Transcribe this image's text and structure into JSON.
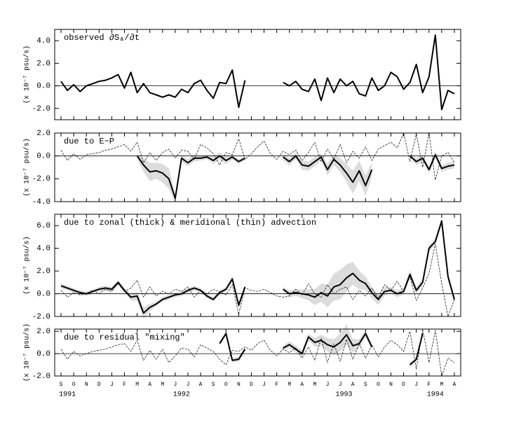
{
  "chart_data": [
    {
      "type": "line",
      "title": "observed ∂Sₐ/∂t",
      "ylabel": "(x 10⁻⁷ psu/s)",
      "zero_line": true,
      "xlim": [
        -0.5,
        31.5
      ],
      "ylim": [
        -3,
        5
      ],
      "yticks": [
        {
          "value": -2,
          "label": "-2.0"
        },
        {
          "value": 0,
          "label": "0.0"
        },
        {
          "value": 2,
          "label": "2.0"
        },
        {
          "value": 4,
          "label": "4.0"
        }
      ],
      "x": [
        0,
        0.5,
        1,
        1.5,
        2,
        2.5,
        3,
        3.5,
        4,
        4.5,
        5,
        5.5,
        6,
        6.5,
        7,
        7.5,
        8,
        8.5,
        9,
        9.5,
        10,
        10.5,
        11,
        11.5,
        12,
        12.5,
        13,
        13.5,
        14,
        14.5,
        15,
        15.5,
        16,
        16.5,
        17,
        17.5,
        18,
        18.5,
        19,
        19.5,
        20,
        20.5,
        21,
        21.5,
        22,
        22.5,
        23,
        23.5,
        24,
        24.5,
        25,
        25.5,
        26,
        26.5,
        27,
        27.5,
        28,
        28.5,
        29,
        29.5,
        30,
        30.5,
        31
      ],
      "series": [
        {
          "color": "#000000",
          "style": "thick",
          "values": [
            0.4,
            -0.4,
            0.1,
            -0.5,
            0.0,
            0.2,
            0.4,
            0.5,
            0.7,
            1.0,
            -0.2,
            1.2,
            -0.6,
            0.2,
            -0.6,
            -0.8,
            -1.0,
            -0.8,
            -1.0,
            -0.3,
            -0.6,
            0.2,
            0.5,
            -0.4,
            -1.1,
            0.3,
            0.2,
            1.4,
            -1.9,
            0.5,
            null,
            null,
            null,
            null,
            null,
            0.3,
            0.0,
            0.4,
            -0.3,
            -0.5,
            0.6,
            -1.3,
            0.7,
            -0.6,
            0.6,
            0.0,
            0.4,
            -0.7,
            -0.9,
            0.7,
            -0.4,
            0.0,
            1.2,
            0.8,
            -0.3,
            0.3,
            1.9,
            -0.6,
            0.8,
            4.5,
            -2.1,
            -0.4,
            -0.7
          ]
        }
      ]
    },
    {
      "type": "line",
      "title": "due to E−P",
      "ylabel": "(x 10⁻⁷ psu/s)",
      "zero_line": true,
      "band_color": "#dcdcdc",
      "xlim": [
        -0.5,
        31.5
      ],
      "ylim": [
        -4,
        2
      ],
      "yticks": [
        {
          "value": -4,
          "label": "-4.0"
        },
        {
          "value": -2,
          "label": "-2.0"
        },
        {
          "value": 0,
          "label": "0.0"
        },
        {
          "value": 2,
          "label": "2.0"
        }
      ],
      "x": [
        0,
        0.5,
        1,
        1.5,
        2,
        2.5,
        3,
        3.5,
        4,
        4.5,
        5,
        5.5,
        6,
        6.5,
        7,
        7.5,
        8,
        8.5,
        9,
        9.5,
        10,
        10.5,
        11,
        11.5,
        12,
        12.5,
        13,
        13.5,
        14,
        14.5,
        15,
        15.5,
        16,
        16.5,
        17,
        17.5,
        18,
        18.5,
        19,
        19.5,
        20,
        20.5,
        21,
        21.5,
        22,
        22.5,
        23,
        23.5,
        24,
        24.5,
        25,
        25.5,
        26,
        26.5,
        27,
        27.5,
        28,
        28.5,
        29,
        29.5,
        30,
        30.5,
        31
      ],
      "series": [
        {
          "color": "#000000",
          "style": "thin",
          "values": [
            0.5,
            -0.4,
            0.2,
            -0.3,
            0.1,
            0.2,
            0.3,
            0.5,
            0.6,
            0.8,
            1.0,
            0.4,
            1.2,
            -0.6,
            0.3,
            -0.4,
            0.3,
            0.6,
            -0.2,
            0.5,
            0.4,
            -0.3,
            1.0,
            0.7,
            0.2,
            -0.8,
            0.3,
            0.1,
            1.5,
            -0.3,
            0.2,
            0.8,
            1.3,
            0.2,
            -0.3,
            0.4,
            0.1,
            0.5,
            -0.4,
            0.3,
            1.2,
            -0.5,
            0.6,
            -0.3,
            1.0,
            -0.6,
            0.4,
            -0.2,
            0.8,
            -0.4,
            0.6,
            0.9,
            1.2,
            0.7,
            2.0,
            -0.5,
            1.9,
            -1.0,
            2.0,
            -2.1,
            0.0,
            0.3,
            -0.6
          ]
        },
        {
          "color": "#000000",
          "style": "thick",
          "values": [
            null,
            null,
            null,
            null,
            null,
            null,
            null,
            null,
            null,
            null,
            null,
            null,
            0.0,
            -0.8,
            -1.4,
            -1.3,
            -1.5,
            -2.0,
            -3.7,
            -0.2,
            -0.6,
            -0.2,
            -0.2,
            -0.1,
            -0.4,
            0.0,
            -0.4,
            -0.1,
            -0.5,
            -0.2,
            null,
            null,
            null,
            null,
            null,
            -0.1,
            -0.5,
            0.0,
            -0.8,
            -0.9,
            -0.5,
            -0.1,
            -1.2,
            -0.3,
            -0.8,
            -1.5,
            -2.3,
            -1.3,
            -2.6,
            -1.2,
            null,
            null,
            null,
            null,
            null,
            0.0,
            -0.5,
            -0.2,
            -1.2,
            0.1,
            -1.1,
            -0.9,
            -0.8
          ],
          "error": [
            null,
            null,
            null,
            null,
            null,
            null,
            null,
            null,
            null,
            null,
            null,
            null,
            0.2,
            0.6,
            0.8,
            0.7,
            0.8,
            0.9,
            0.4,
            0.3,
            0.3,
            0.3,
            0.2,
            0.2,
            0.3,
            0.3,
            0.3,
            0.2,
            0.2,
            0.2,
            null,
            null,
            null,
            null,
            null,
            0.3,
            0.3,
            0.3,
            0.4,
            0.4,
            0.4,
            0.3,
            0.5,
            0.5,
            0.6,
            0.8,
            1.0,
            0.9,
            0.9,
            0.6,
            null,
            null,
            null,
            null,
            null,
            0.2,
            0.3,
            0.3,
            0.3,
            0.3,
            0.3,
            0.3,
            0.3
          ]
        }
      ]
    },
    {
      "type": "line",
      "title": "due to zonal (thick) & meridional (thin) advection",
      "ylabel": "(x 10⁻⁷ psu/s)",
      "zero_line": true,
      "band_color": "#dcdcdc",
      "xlim": [
        -0.5,
        31.5
      ],
      "ylim": [
        -2,
        7
      ],
      "yticks": [
        {
          "value": -2,
          "label": "-2.0"
        },
        {
          "value": 0,
          "label": "0.0"
        },
        {
          "value": 2,
          "label": "2.0"
        },
        {
          "value": 4,
          "label": "4.0"
        },
        {
          "value": 6,
          "label": "6.0"
        }
      ],
      "x": [
        0,
        0.5,
        1,
        1.5,
        2,
        2.5,
        3,
        3.5,
        4,
        4.5,
        5,
        5.5,
        6,
        6.5,
        7,
        7.5,
        8,
        8.5,
        9,
        9.5,
        10,
        10.5,
        11,
        11.5,
        12,
        12.5,
        13,
        13.5,
        14,
        14.5,
        15,
        15.5,
        16,
        16.5,
        17,
        17.5,
        18,
        18.5,
        19,
        19.5,
        20,
        20.5,
        21,
        21.5,
        22,
        22.5,
        23,
        23.5,
        24,
        24.5,
        25,
        25.5,
        26,
        26.5,
        27,
        27.5,
        28,
        28.5,
        29,
        29.5,
        30,
        30.5,
        31
      ],
      "series": [
        {
          "color": "#000000",
          "style": "thin",
          "values": [
            0.3,
            -0.3,
            0.1,
            -0.1,
            0.0,
            0.3,
            0.0,
            0.4,
            0.2,
            0.9,
            0.2,
            0.5,
            1.2,
            -0.3,
            0.6,
            -0.2,
            0.2,
            0.0,
            0.4,
            0.2,
            0.6,
            -0.3,
            0.3,
            0.0,
            0.4,
            0.2,
            -0.1,
            0.8,
            -1.8,
            0.5,
            0.3,
            0.2,
            0.4,
            0.1,
            -0.2,
            -0.3,
            -0.2,
            0.4,
            -0.1,
            0.9,
            0.0,
            -0.3,
            0.8,
            0.0,
            0.4,
            0.6,
            -0.5,
            0.3,
            -0.2,
            0.5,
            -0.4,
            0.8,
            0.3,
            1.1,
            0.2,
            1.5,
            -0.6,
            0.5,
            1.8,
            4.4,
            0.9,
            -2.0,
            -0.5
          ]
        },
        {
          "color": "#000000",
          "style": "thick",
          "values": [
            0.7,
            0.5,
            0.3,
            0.1,
            0.0,
            0.2,
            0.4,
            0.5,
            0.4,
            1.0,
            0.3,
            -0.3,
            -0.2,
            -1.7,
            -1.2,
            -0.9,
            -0.5,
            -0.3,
            -0.1,
            0.0,
            0.3,
            0.5,
            0.3,
            -0.2,
            -0.5,
            0.1,
            0.4,
            1.3,
            -1.0,
            0.6,
            null,
            null,
            null,
            null,
            null,
            0.4,
            0.0,
            0.1,
            0.0,
            -0.1,
            -0.3,
            0.1,
            -0.2,
            0.6,
            0.8,
            1.4,
            1.8,
            1.2,
            0.9,
            0.1,
            -0.5,
            0.2,
            0.3,
            0.0,
            0.2,
            1.7,
            0.3,
            1.0,
            4.0,
            4.6,
            6.4,
            1.5,
            -0.5
          ],
          "error": [
            0.2,
            0.2,
            0.2,
            0.2,
            0.2,
            0.2,
            0.2,
            0.2,
            0.2,
            0.2,
            0.2,
            0.3,
            0.4,
            0.5,
            0.3,
            0.2,
            0.2,
            0.2,
            0.2,
            0.2,
            0.2,
            0.2,
            0.2,
            0.2,
            0.2,
            0.2,
            0.2,
            0.3,
            0.3,
            0.2,
            null,
            null,
            null,
            null,
            null,
            0.2,
            0.3,
            0.3,
            0.4,
            0.5,
            0.7,
            0.8,
            1.0,
            1.2,
            1.3,
            1.2,
            1.0,
            0.8,
            0.6,
            0.5,
            0.5,
            0.4,
            0.3,
            0.3,
            0.3,
            0.4,
            0.3,
            0.3,
            0.3,
            0.3,
            0.3,
            0.3,
            0.3
          ]
        }
      ]
    },
    {
      "type": "line",
      "title": "due to residual \"mixing\"",
      "ylabel": "(x 10⁻⁷ psu/s)",
      "zero_line": true,
      "band_color": "#dcdcdc",
      "xlim": [
        -0.5,
        31.5
      ],
      "ylim": [
        -2,
        2.2
      ],
      "yticks": [
        {
          "value": -2,
          "label": "-2.0"
        },
        {
          "value": 0,
          "label": "0.0"
        },
        {
          "value": 2,
          "label": "2.0"
        }
      ],
      "x": [
        0,
        0.5,
        1,
        1.5,
        2,
        2.5,
        3,
        3.5,
        4,
        4.5,
        5,
        5.5,
        6,
        6.5,
        7,
        7.5,
        8,
        8.5,
        9,
        9.5,
        10,
        10.5,
        11,
        11.5,
        12,
        12.5,
        13,
        13.5,
        14,
        14.5,
        15,
        15.5,
        16,
        16.5,
        17,
        17.5,
        18,
        18.5,
        19,
        19.5,
        20,
        20.5,
        21,
        21.5,
        22,
        22.5,
        23,
        23.5,
        24,
        24.5,
        25,
        25.5,
        26,
        26.5,
        27,
        27.5,
        28,
        28.5,
        29,
        29.5,
        30,
        30.5,
        31
      ],
      "xticks": [
        {
          "value": 0,
          "label": "S"
        },
        {
          "value": 1,
          "label": "O"
        },
        {
          "value": 2,
          "label": "N"
        },
        {
          "value": 3,
          "label": "D"
        },
        {
          "value": 4,
          "label": "J"
        },
        {
          "value": 5,
          "label": "F"
        },
        {
          "value": 6,
          "label": "M"
        },
        {
          "value": 7,
          "label": "A"
        },
        {
          "value": 8,
          "label": "M"
        },
        {
          "value": 9,
          "label": "J"
        },
        {
          "value": 10,
          "label": "J"
        },
        {
          "value": 11,
          "label": "A"
        },
        {
          "value": 12,
          "label": "S"
        },
        {
          "value": 13,
          "label": "O"
        },
        {
          "value": 14,
          "label": "N"
        },
        {
          "value": 15,
          "label": "D"
        },
        {
          "value": 16,
          "label": "J"
        },
        {
          "value": 17,
          "label": "F"
        },
        {
          "value": 18,
          "label": "M"
        },
        {
          "value": 19,
          "label": "A"
        },
        {
          "value": 20,
          "label": "M"
        },
        {
          "value": 21,
          "label": "J"
        },
        {
          "value": 22,
          "label": "J"
        },
        {
          "value": 23,
          "label": "A"
        },
        {
          "value": 24,
          "label": "S"
        },
        {
          "value": 25,
          "label": "O"
        },
        {
          "value": 26,
          "label": "N"
        },
        {
          "value": 27,
          "label": "D"
        },
        {
          "value": 28,
          "label": "J"
        },
        {
          "value": 29,
          "label": "F"
        },
        {
          "value": 30,
          "label": "M"
        },
        {
          "value": 31,
          "label": "A"
        }
      ],
      "year_labels": [
        {
          "value": 0.5,
          "label": "1991"
        },
        {
          "value": 9.5,
          "label": "1992"
        },
        {
          "value": 22.3,
          "label": "1993"
        },
        {
          "value": 29.5,
          "label": "1994"
        }
      ],
      "series": [
        {
          "color": "#000000",
          "style": "thin",
          "values": [
            0.4,
            -0.5,
            0.2,
            -0.2,
            0.0,
            0.2,
            0.3,
            0.4,
            0.6,
            0.8,
            0.9,
            0.2,
            1.2,
            -0.6,
            0.3,
            -0.5,
            0.4,
            -0.8,
            -0.2,
            0.5,
            0.4,
            -0.3,
            0.8,
            0.5,
            0.2,
            -0.5,
            -1.0,
            0.3,
            0.2,
            0.6,
            0.3,
            0.9,
            1.2,
            0.3,
            -0.2,
            0.4,
            0.1,
            0.5,
            -0.4,
            0.6,
            -0.6,
            1.4,
            -0.8,
            0.9,
            -0.7,
            1.3,
            -0.5,
            0.9,
            -0.4,
            0.8,
            -0.3,
            0.6,
            1.2,
            0.8,
            0.2,
            2.0,
            -1.4,
            2.2,
            -0.8,
            2.1,
            -2.0,
            -0.4,
            -0.8
          ]
        },
        {
          "color": "#000000",
          "style": "thick",
          "values": [
            null,
            null,
            null,
            null,
            null,
            null,
            null,
            null,
            null,
            null,
            null,
            null,
            null,
            null,
            null,
            null,
            null,
            null,
            null,
            null,
            null,
            null,
            null,
            null,
            null,
            0.9,
            1.8,
            -0.6,
            -0.5,
            0.4,
            null,
            null,
            null,
            null,
            null,
            0.5,
            0.8,
            0.4,
            0.0,
            1.5,
            1.0,
            1.2,
            0.8,
            0.6,
            1.0,
            1.7,
            0.7,
            0.9,
            1.8,
            0.6,
            null,
            null,
            null,
            null,
            null,
            -1.0,
            -0.5,
            1.8,
            null,
            null,
            null,
            null,
            null
          ],
          "error": [
            null,
            null,
            null,
            null,
            null,
            null,
            null,
            null,
            null,
            null,
            null,
            null,
            null,
            null,
            null,
            null,
            null,
            null,
            null,
            null,
            null,
            null,
            null,
            null,
            null,
            0.2,
            0.2,
            0.2,
            0.2,
            0.2,
            null,
            null,
            null,
            null,
            null,
            0.2,
            0.3,
            0.3,
            0.3,
            0.3,
            0.4,
            0.5,
            0.6,
            0.7,
            0.8,
            0.9,
            0.6,
            0.4,
            0.3,
            0.3,
            null,
            null,
            null,
            null,
            null,
            0.2,
            0.2,
            0.2,
            null,
            null,
            null,
            null,
            null
          ]
        }
      ]
    }
  ]
}
